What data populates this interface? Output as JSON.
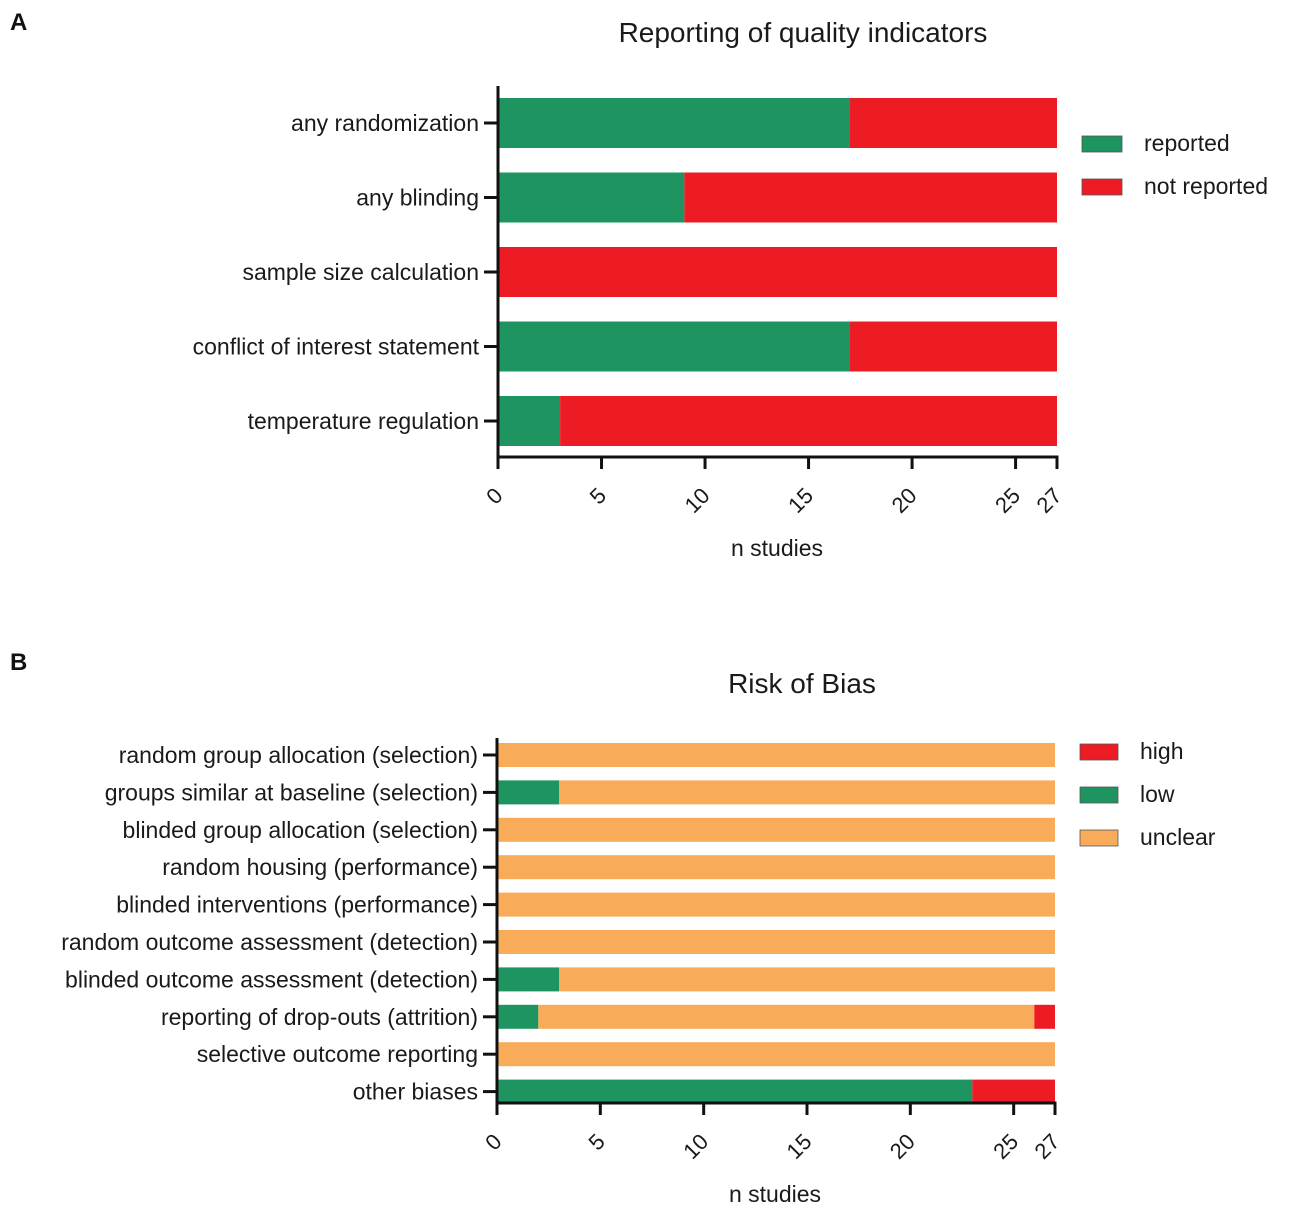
{
  "colors": {
    "reported": "#1e9461",
    "not_reported": "#ed1c24",
    "high": "#ed1c24",
    "low": "#1e9461",
    "unclear": "#f8ac59"
  },
  "chart_data": [
    {
      "panel": "A",
      "type": "bar",
      "orientation": "horizontal",
      "stacked": true,
      "title": "Reporting of quality indicators",
      "xlabel": "n studies",
      "ylabel": "",
      "xlim": [
        0,
        27
      ],
      "xticks": [
        0,
        5,
        10,
        15,
        20,
        25,
        27
      ],
      "legend_position": "right",
      "categories": [
        "any randomization",
        "any blinding",
        "sample size calculation",
        "conflict of interest statement",
        "temperature regulation"
      ],
      "series": [
        {
          "name": "reported",
          "color": "#1e9461",
          "values": [
            17,
            9,
            0,
            17,
            3
          ]
        },
        {
          "name": "not reported",
          "color": "#ed1c24",
          "values": [
            10,
            18,
            27,
            10,
            24
          ]
        }
      ]
    },
    {
      "panel": "B",
      "type": "bar",
      "orientation": "horizontal",
      "stacked": true,
      "title": "Risk of Bias",
      "xlabel": "n studies",
      "ylabel": "",
      "xlim": [
        0,
        27
      ],
      "xticks": [
        0,
        5,
        10,
        15,
        20,
        25,
        27
      ],
      "legend_position": "right",
      "categories": [
        "random group allocation (selection)",
        "groups similar at baseline (selection)",
        "blinded group allocation (selection)",
        "random housing (performance)",
        "blinded interventions (performance)",
        "random outcome assessment (detection)",
        "blinded outcome assessment (detection)",
        "reporting of drop-outs (attrition)",
        "selective outcome reporting",
        "other biases"
      ],
      "stack_order": [
        "low",
        "unclear",
        "high"
      ],
      "series": [
        {
          "name": "high",
          "color": "#ed1c24",
          "values": [
            0,
            0,
            0,
            0,
            0,
            0,
            0,
            1,
            0,
            4
          ]
        },
        {
          "name": "low",
          "color": "#1e9461",
          "values": [
            0,
            3,
            0,
            0,
            0,
            0,
            3,
            2,
            0,
            23
          ]
        },
        {
          "name": "unclear",
          "color": "#f8ac59",
          "values": [
            27,
            24,
            27,
            27,
            27,
            27,
            24,
            24,
            27,
            0
          ]
        }
      ]
    }
  ]
}
